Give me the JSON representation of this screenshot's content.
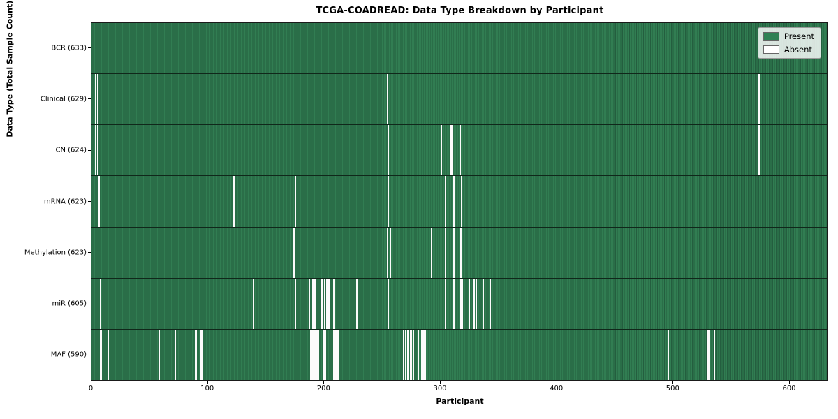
{
  "chart_data": {
    "type": "heatmap",
    "title": "TCGA-COADREAD: Data Type Breakdown by Participant",
    "xlabel": "Participant",
    "ylabel": "Data Type (Total Sample Count)",
    "xlim": [
      0,
      633
    ],
    "x_ticks": [
      0,
      100,
      200,
      300,
      400,
      500,
      600
    ],
    "n_participants": 633,
    "grid": false,
    "legend_position": "upper right",
    "legend": [
      {
        "label": "Present",
        "color": "#2f8154"
      },
      {
        "label": "Absent",
        "color": "#ffffff"
      }
    ],
    "colors": {
      "present": "#317d52",
      "present_dark_edge": "#245e3f",
      "absent": "#fbfbfb",
      "row_divider": "#10271a",
      "spine": "#1a1a1a"
    },
    "rows": [
      {
        "label": "BCR (633)",
        "data_type": "BCR",
        "count": 633,
        "absent_participants": []
      },
      {
        "label": "Clinical (629)",
        "data_type": "Clinical",
        "count": 629,
        "absent_participants": [
          3,
          5,
          254,
          574
        ]
      },
      {
        "label": "CN (624)",
        "data_type": "CN",
        "count": 624,
        "absent_participants": [
          3,
          5,
          173,
          255,
          301,
          309,
          310,
          317,
          574
        ]
      },
      {
        "label": "mRNA (623)",
        "data_type": "mRNA",
        "count": 623,
        "absent_participants": [
          6,
          99,
          122,
          175,
          255,
          304,
          311,
          312,
          318,
          372
        ]
      },
      {
        "label": "Methylation (623)",
        "data_type": "Methylation",
        "count": 623,
        "absent_participants": [
          111,
          174,
          254,
          257,
          292,
          304,
          311,
          312,
          317,
          318
        ]
      },
      {
        "label": "miR (605)",
        "data_type": "miR",
        "count": 605,
        "absent_participants": [
          7,
          139,
          175,
          187,
          190,
          191,
          192,
          198,
          200,
          202,
          203,
          204,
          208,
          209,
          228,
          255,
          304,
          311,
          312,
          317,
          318,
          319,
          325,
          329,
          331,
          334,
          337,
          343
        ]
      },
      {
        "label": "MAF (590)",
        "data_type": "MAF",
        "count": 590,
        "absent_participants": [
          7,
          8,
          14,
          58,
          72,
          75,
          81,
          89,
          90,
          93,
          94,
          95,
          188,
          189,
          190,
          191,
          192,
          193,
          194,
          195,
          199,
          200,
          201,
          208,
          209,
          210,
          211,
          212,
          268,
          270,
          272,
          274,
          275,
          277,
          281,
          284,
          285,
          286,
          287,
          496,
          530,
          531,
          536
        ]
      }
    ]
  }
}
